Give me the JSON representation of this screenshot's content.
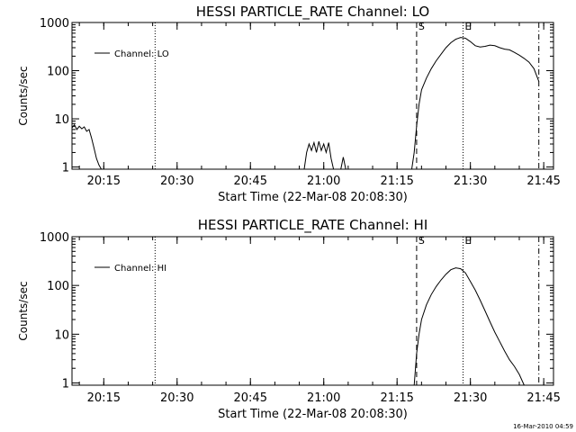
{
  "timestamp": "16-Mar-2010 04:59",
  "chart_data": [
    {
      "type": "line",
      "title": "HESSI PARTICLE_RATE Channel: LO",
      "xlabel": "Start Time (22-Mar-08 20:08:30)",
      "ylabel": "Counts/sec",
      "yscale": "log",
      "xlim": [
        "20:08:30",
        "21:47:00"
      ],
      "ylim": [
        0.9,
        1000
      ],
      "xticks": [
        "20:15",
        "20:30",
        "20:45",
        "21:00",
        "21:15",
        "21:30",
        "21:45"
      ],
      "yticks": [
        "1",
        "10",
        "100",
        "1000"
      ],
      "legend": {
        "label": "Channel: LO",
        "position": "top-left"
      },
      "markers": [
        {
          "time": "20:25:30",
          "style": "dotted",
          "label": ""
        },
        {
          "time": "21:19:00",
          "style": "dashed",
          "label": "S"
        },
        {
          "time": "21:28:30",
          "style": "dotted",
          "label": "E"
        },
        {
          "time": "21:44:00",
          "style": "dash-dot",
          "label": ""
        }
      ],
      "series": [
        {
          "name": "Channel: LO",
          "segments": [
            {
              "x": [
                "20:08:30",
                "20:09:00",
                "20:09:30",
                "20:10:00",
                "20:10:30",
                "20:11:00",
                "20:11:30",
                "20:12:00",
                "20:12:30",
                "20:13:00",
                "20:13:30",
                "20:14:00",
                "20:14:30"
              ],
              "y": [
                6.5,
                7.5,
                6.0,
                7.0,
                6.2,
                6.8,
                5.5,
                6.0,
                4.0,
                2.5,
                1.5,
                1.1,
                0.9
              ]
            },
            {
              "x": [
                "20:56:00",
                "20:56:30",
                "20:57:00",
                "20:57:30",
                "20:58:00",
                "20:58:30",
                "20:59:00",
                "20:59:30",
                "21:00:00",
                "21:00:30",
                "21:01:00",
                "21:01:30",
                "21:02:00",
                "21:02:30"
              ],
              "y": [
                0.9,
                2.0,
                3.0,
                2.2,
                3.2,
                2.0,
                3.4,
                2.2,
                3.0,
                2.0,
                3.2,
                1.5,
                0.9,
                0.9
              ]
            },
            {
              "x": [
                "21:03:30",
                "21:04:00",
                "21:04:30"
              ],
              "y": [
                0.9,
                1.6,
                0.9
              ]
            },
            {
              "x": [
                "21:18:00",
                "21:18:30",
                "21:19:00",
                "21:19:30",
                "21:20:00",
                "21:21:00",
                "21:22:00",
                "21:23:00",
                "21:24:00",
                "21:25:00",
                "21:26:00",
                "21:27:00",
                "21:28:00",
                "21:29:00",
                "21:30:00",
                "21:31:00",
                "21:32:00",
                "21:33:00",
                "21:34:00",
                "21:35:00",
                "21:36:00",
                "21:37:00",
                "21:38:00",
                "21:39:00",
                "21:40:00",
                "21:41:00",
                "21:42:00",
                "21:43:00",
                "21:44:00"
              ],
              "y": [
                0.9,
                2,
                7,
                20,
                40,
                70,
                110,
                160,
                220,
                300,
                380,
                450,
                490,
                470,
                400,
                330,
                310,
                320,
                340,
                330,
                300,
                280,
                270,
                240,
                210,
                180,
                150,
                110,
                60
              ]
            }
          ]
        }
      ]
    },
    {
      "type": "line",
      "title": "HESSI PARTICLE_RATE Channel: HI",
      "xlabel": "Start Time (22-Mar-08 20:08:30)",
      "ylabel": "Counts/sec",
      "yscale": "log",
      "xlim": [
        "20:08:30",
        "21:47:00"
      ],
      "ylim": [
        0.9,
        1000
      ],
      "xticks": [
        "20:15",
        "20:30",
        "20:45",
        "21:00",
        "21:15",
        "21:30",
        "21:45"
      ],
      "yticks": [
        "1",
        "10",
        "100",
        "1000"
      ],
      "legend": {
        "label": "Channel: HI",
        "position": "top-left"
      },
      "markers": [
        {
          "time": "20:25:30",
          "style": "dotted",
          "label": ""
        },
        {
          "time": "21:19:00",
          "style": "dashed",
          "label": "S"
        },
        {
          "time": "21:28:30",
          "style": "dotted",
          "label": "E"
        },
        {
          "time": "21:44:00",
          "style": "dash-dot",
          "label": ""
        }
      ],
      "series": [
        {
          "name": "Channel: HI",
          "segments": [
            {
              "x": [
                "21:18:30",
                "21:19:00",
                "21:19:30",
                "21:20:00",
                "21:21:00",
                "21:22:00",
                "21:23:00",
                "21:24:00",
                "21:25:00",
                "21:26:00",
                "21:27:00",
                "21:28:00",
                "21:29:00",
                "21:30:00",
                "21:31:00",
                "21:32:00",
                "21:33:00",
                "21:34:00",
                "21:35:00",
                "21:36:00",
                "21:37:00",
                "21:38:00",
                "21:39:00",
                "21:40:00",
                "21:41:00"
              ],
              "y": [
                0.9,
                4,
                10,
                20,
                40,
                65,
                95,
                130,
                170,
                210,
                230,
                220,
                180,
                120,
                80,
                50,
                30,
                18,
                11,
                7,
                4.5,
                3.0,
                2.2,
                1.5,
                0.9
              ]
            }
          ]
        }
      ]
    }
  ]
}
